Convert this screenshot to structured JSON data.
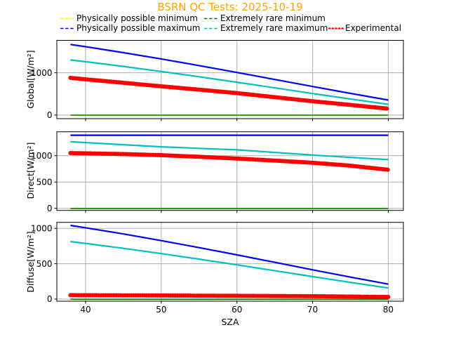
{
  "title": {
    "text": "BSRN QC Tests: 2025-10-19",
    "color": "#ffa500"
  },
  "legend": {
    "items": [
      {
        "id": "ppmin",
        "label": "Physically possible minimum",
        "color": "#ffff00",
        "linestyle": "dashed"
      },
      {
        "id": "ermin",
        "label": "Extremely rare minimum",
        "color": "#008000",
        "linestyle": "dashed"
      },
      {
        "id": "ppmax",
        "label": "Physically possible maximum",
        "color": "#0000ff",
        "linestyle": "dashed"
      },
      {
        "id": "ermax",
        "label": "Extremely rare maximum",
        "color": "#00bfbf",
        "linestyle": "dashed"
      },
      {
        "id": "experimental",
        "label": "Experimental",
        "color": "#ff0000",
        "linestyle": "dotted"
      }
    ]
  },
  "chart_data": {
    "type": "line",
    "title": "BSRN QC Tests: 2025-10-19",
    "xlabel": "SZA",
    "x": [
      38,
      40,
      45,
      50,
      55,
      60,
      65,
      70,
      75,
      80
    ],
    "xlim": [
      36.2,
      82.0
    ],
    "xticks": [
      40,
      50,
      60,
      70,
      80
    ],
    "grid": true,
    "legend_position": "top",
    "series_order": [
      "ppmin",
      "ppmax",
      "ermin",
      "ermax",
      "experimental"
    ],
    "styles": {
      "ppmin": {
        "color": "#ffff00",
        "width": 1.6,
        "dotted": false
      },
      "ppmax": {
        "color": "#0000ff",
        "width": 2.2,
        "dotted": false
      },
      "ermin": {
        "color": "#008000",
        "width": 1.6,
        "dotted": false
      },
      "ermax": {
        "color": "#00bfbf",
        "width": 2.2,
        "dotted": false
      },
      "experimental": {
        "color": "#ff0000",
        "width": 6,
        "dotted": true
      }
    },
    "subplots": [
      {
        "name": "global",
        "ylabel": "Global[W/m²]",
        "ylim": [
          -85,
          1766
        ],
        "yticks": [
          0,
          1000
        ],
        "series": {
          "ppmin": [
            -4,
            -4,
            -4,
            -4,
            -4,
            -4,
            -4,
            -4,
            -4,
            -4
          ],
          "ppmax": [
            1670,
            1616,
            1476,
            1328,
            1170,
            1008,
            842,
            675,
            512,
            355
          ],
          "ermin": [
            -2,
            -2,
            -2,
            -2,
            -2,
            -2,
            -2,
            -2,
            -2,
            -2
          ],
          "ermax": [
            1303,
            1261,
            1150,
            1031,
            906,
            776,
            643,
            510,
            379,
            254
          ],
          "experimental": [
            880,
            845,
            763,
            680,
            600,
            519,
            423,
            327,
            240,
            150
          ]
        }
      },
      {
        "name": "direct",
        "ylabel": "Direct[W/m²]",
        "ylim": [
          -40,
          1455
        ],
        "yticks": [
          0,
          500,
          1000
        ],
        "series": {
          "ppmin": [
            -4,
            -4,
            -4,
            -4,
            -4,
            -4,
            -4,
            -4,
            -4,
            -4
          ],
          "ppmax": [
            1390,
            1390,
            1390,
            1390,
            1390,
            1390,
            1390,
            1390,
            1390,
            1390
          ],
          "ermin": [
            -2,
            -2,
            -2,
            -2,
            -2,
            -2,
            -2,
            -2,
            -2,
            -2
          ],
          "ermax": [
            1266,
            1250,
            1210,
            1169,
            1140,
            1112,
            1062,
            1013,
            968,
            925
          ],
          "experimental": [
            1050,
            1045,
            1032,
            1010,
            980,
            947,
            908,
            867,
            810,
            733
          ]
        }
      },
      {
        "name": "diffuse",
        "ylabel": "Diffuse[W/m²]",
        "ylim": [
          -30,
          1085
        ],
        "yticks": [
          0,
          500,
          1000
        ],
        "series": {
          "ppmin": [
            -4,
            -4,
            -4,
            -4,
            -4,
            -4,
            -4,
            -4,
            -4,
            -4
          ],
          "ppmax": [
            1042,
            1009,
            921,
            827,
            728,
            625,
            520,
            414,
            311,
            211
          ],
          "ermin": [
            -2,
            -2,
            -2,
            -2,
            -2,
            -2,
            -2,
            -2,
            -2,
            -2
          ],
          "ermax": [
            813,
            787,
            718,
            643,
            565,
            484,
            401,
            318,
            236,
            157
          ],
          "experimental": [
            55,
            54,
            52,
            50,
            48,
            46,
            43,
            40,
            36,
            30
          ]
        }
      }
    ]
  }
}
